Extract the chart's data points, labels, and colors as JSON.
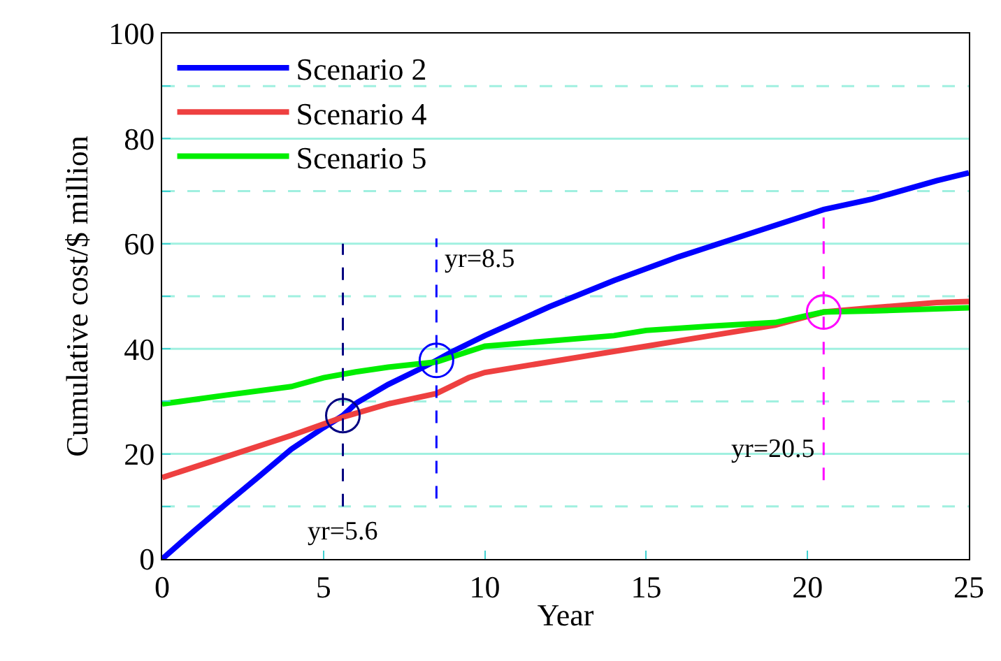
{
  "chart_data": {
    "type": "line",
    "xlabel": "Year",
    "ylabel": "Cumulative cost/$ million",
    "xlim": [
      0,
      25
    ],
    "xticks": [
      0,
      5,
      10,
      15,
      20,
      25
    ],
    "ylim": [
      0,
      100
    ],
    "yticks": [
      0,
      {
        "value": 10,
        "label": null
      },
      20,
      {
        "value": 30,
        "label": null
      },
      40,
      {
        "value": 50,
        "label": null
      },
      60,
      {
        "value": 70,
        "label": null
      },
      80,
      {
        "value": 90,
        "label": null
      },
      100
    ],
    "grid": "y",
    "legend": "top left",
    "marker": "none",
    "series": [
      {
        "name": "Scenario 2",
        "color": "#0000ff",
        "x": [
          0,
          1,
          2,
          3,
          4,
          5,
          5.6,
          6,
          7,
          8,
          8.5,
          9,
          10,
          12,
          14,
          16,
          18,
          20,
          20.5,
          22,
          24,
          25
        ],
        "values": [
          0,
          5.4,
          10.6,
          15.7,
          20.9,
          25,
          27.3,
          29.6,
          33.2,
          36.2,
          37.8,
          39.5,
          42.5,
          48,
          53,
          57.5,
          61.5,
          65.5,
          66.5,
          68.5,
          72,
          73.5
        ]
      },
      {
        "name": "Scenario 4",
        "color": "#ee4040",
        "x": [
          0,
          1,
          2,
          4,
          5.6,
          7,
          8.5,
          9,
          9.5,
          10,
          12,
          15,
          17,
          19,
          20.5,
          22,
          24,
          25
        ],
        "values": [
          15.5,
          17.5,
          19.5,
          23.5,
          27,
          29.5,
          31.5,
          33,
          34.5,
          35.5,
          37.5,
          40.5,
          42.5,
          44.5,
          47,
          47.8,
          48.8,
          49
        ]
      },
      {
        "name": "Scenario 5",
        "color": "#00ee00",
        "x": [
          0,
          2,
          4,
          5,
          6,
          7,
          8.5,
          9,
          10,
          12,
          14,
          15,
          17,
          19,
          20.5,
          22,
          25
        ],
        "values": [
          29.5,
          31.2,
          32.8,
          34.5,
          35.6,
          36.5,
          37.5,
          38.5,
          40.5,
          41.5,
          42.5,
          43.5,
          44.3,
          45,
          47,
          47.2,
          47.8
        ]
      },
      {
        "type": "line",
        "line_style": "dashed",
        "color": "#000080",
        "x": [
          5.6,
          5.6
        ],
        "values": [
          10,
          60
        ]
      },
      {
        "type": "line",
        "line_style": "dashed",
        "color": "#0000ff",
        "x": [
          8.5,
          8.5
        ],
        "values": [
          11.5,
          61
        ]
      },
      {
        "type": "line",
        "line_style": "dashed",
        "color": "#ff00ff",
        "x": [
          20.5,
          20.5
        ],
        "values": [
          15,
          65
        ]
      },
      {
        "type": "scatter",
        "marker": "circle",
        "x": [
          5.6,
          8.5,
          20.5
        ],
        "values": [
          27.3,
          37.8,
          47
        ],
        "colors": [
          "#000080",
          "#0000ff",
          "#ff00ff"
        ]
      }
    ],
    "annotations": [
      {
        "text": "yr=5.6",
        "x": 5.6,
        "y": 10
      },
      {
        "text": "yr=8.5",
        "x": 8.5,
        "y": 61
      },
      {
        "text": "yr=20.5",
        "x": 20.5,
        "y": 15
      }
    ]
  }
}
